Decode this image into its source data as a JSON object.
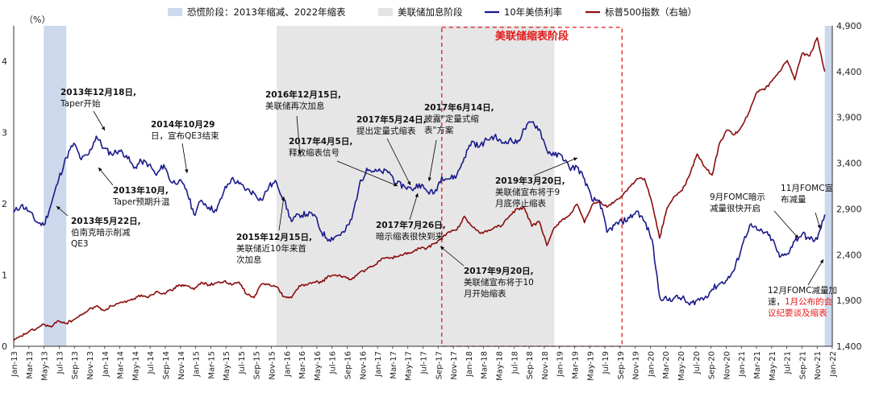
{
  "chart_data": {
    "type": "line",
    "title": "",
    "left_axis": {
      "unit_label": "（%）",
      "ylim": [
        0,
        4.5
      ],
      "ticks": [
        "0",
        "1",
        "2",
        "3",
        "4"
      ]
    },
    "right_axis": {
      "ylim": [
        1400,
        4900
      ],
      "ticks": [
        "1,400",
        "1,900",
        "2,400",
        "2,900",
        "3,400",
        "3,900",
        "4,400",
        "4,900"
      ]
    },
    "x_ticks": [
      "Jan-13",
      "Mar-13",
      "May-13",
      "Jul-13",
      "Sep-13",
      "Nov-13",
      "Jan-14",
      "Mar-14",
      "May-14",
      "Jul-14",
      "Sep-14",
      "Nov-14",
      "Jan-15",
      "Mar-15",
      "May-15",
      "Jul-15",
      "Sep-15",
      "Nov-15",
      "Jan-16",
      "Mar-16",
      "May-16",
      "Jul-16",
      "Sep-16",
      "Nov-16",
      "Jan-17",
      "Mar-17",
      "May-17",
      "Jul-17",
      "Sep-17",
      "Nov-17",
      "Jan-18",
      "Mar-18",
      "May-18",
      "Jul-18",
      "Sep-18",
      "Nov-18",
      "Jan-19",
      "Mar-19",
      "May-19",
      "Jul-19",
      "Sep-19",
      "Nov-19",
      "Jan-20",
      "Mar-20",
      "May-20",
      "Jul-20",
      "Sep-20",
      "Nov-20",
      "Jan-21",
      "Mar-21",
      "May-21",
      "Jul-21",
      "Sep-21",
      "Nov-21",
      "Jan-22"
    ],
    "legend": [
      {
        "name": "恐慌阶段：2013年缩减、2022年缩表",
        "kind": "box",
        "color": "#ccd9ec"
      },
      {
        "name": "美联储加息阶段",
        "kind": "box",
        "color": "#e3e3e3"
      },
      {
        "name": "10年美债利率",
        "kind": "line",
        "color": "#1a1a8c"
      },
      {
        "name": "标普500指数（右轴）",
        "kind": "line",
        "color": "#8b0d0d"
      }
    ],
    "shaded_periods": [
      {
        "type": "panic",
        "start": "2013-05",
        "end": "2013-07"
      },
      {
        "type": "panic",
        "start": "2022-01",
        "end": "2022-01"
      },
      {
        "type": "hike",
        "start": "2015-12",
        "end": "2018-12"
      }
    ],
    "qt_box_label": "美联储缩表阶段",
    "qt_period": {
      "start": "2017-10",
      "end": "2019-10"
    },
    "series": [
      {
        "name": "10年美债利率",
        "axis": "left",
        "color": "#1a1a8c",
        "points": [
          [
            "2013-01",
            1.88
          ],
          [
            "2013-02",
            1.98
          ],
          [
            "2013-03",
            1.9
          ],
          [
            "2013-04",
            1.75
          ],
          [
            "2013-05",
            1.7
          ],
          [
            "2013-06",
            2.0
          ],
          [
            "2013-07",
            2.35
          ],
          [
            "2013-08",
            2.65
          ],
          [
            "2013-09",
            2.85
          ],
          [
            "2013-10",
            2.62
          ],
          [
            "2013-11",
            2.7
          ],
          [
            "2013-12",
            2.95
          ],
          [
            "2014-01",
            2.78
          ],
          [
            "2014-02",
            2.7
          ],
          [
            "2014-03",
            2.75
          ],
          [
            "2014-04",
            2.68
          ],
          [
            "2014-05",
            2.5
          ],
          [
            "2014-06",
            2.6
          ],
          [
            "2014-07",
            2.55
          ],
          [
            "2014-08",
            2.4
          ],
          [
            "2014-09",
            2.55
          ],
          [
            "2014-10",
            2.3
          ],
          [
            "2014-11",
            2.32
          ],
          [
            "2014-12",
            2.2
          ],
          [
            "2015-01",
            1.85
          ],
          [
            "2015-02",
            2.05
          ],
          [
            "2015-03",
            1.95
          ],
          [
            "2015-04",
            1.9
          ],
          [
            "2015-05",
            2.18
          ],
          [
            "2015-06",
            2.35
          ],
          [
            "2015-07",
            2.28
          ],
          [
            "2015-08",
            2.2
          ],
          [
            "2015-09",
            2.15
          ],
          [
            "2015-10",
            2.05
          ],
          [
            "2015-11",
            2.25
          ],
          [
            "2015-12",
            2.3
          ],
          [
            "2016-01",
            2.05
          ],
          [
            "2016-02",
            1.75
          ],
          [
            "2016-03",
            1.85
          ],
          [
            "2016-04",
            1.85
          ],
          [
            "2016-05",
            1.85
          ],
          [
            "2016-06",
            1.6
          ],
          [
            "2016-07",
            1.5
          ],
          [
            "2016-08",
            1.55
          ],
          [
            "2016-09",
            1.6
          ],
          [
            "2016-10",
            1.78
          ],
          [
            "2016-11",
            2.25
          ],
          [
            "2016-12",
            2.5
          ],
          [
            "2017-01",
            2.45
          ],
          [
            "2017-02",
            2.45
          ],
          [
            "2017-03",
            2.45
          ],
          [
            "2017-04",
            2.28
          ],
          [
            "2017-05",
            2.25
          ],
          [
            "2017-06",
            2.2
          ],
          [
            "2017-07",
            2.28
          ],
          [
            "2017-08",
            2.18
          ],
          [
            "2017-09",
            2.15
          ],
          [
            "2017-10",
            2.38
          ],
          [
            "2017-11",
            2.35
          ],
          [
            "2017-12",
            2.4
          ],
          [
            "2018-01",
            2.65
          ],
          [
            "2018-02",
            2.88
          ],
          [
            "2018-03",
            2.8
          ],
          [
            "2018-04",
            2.9
          ],
          [
            "2018-05",
            2.95
          ],
          [
            "2018-06",
            2.85
          ],
          [
            "2018-07",
            2.9
          ],
          [
            "2018-08",
            2.85
          ],
          [
            "2018-09",
            3.05
          ],
          [
            "2018-10",
            3.15
          ],
          [
            "2018-11",
            3.05
          ],
          [
            "2018-12",
            2.75
          ],
          [
            "2019-01",
            2.68
          ],
          [
            "2019-02",
            2.68
          ],
          [
            "2019-03",
            2.5
          ],
          [
            "2019-04",
            2.52
          ],
          [
            "2019-05",
            2.35
          ],
          [
            "2019-06",
            2.05
          ],
          [
            "2019-07",
            2.05
          ],
          [
            "2019-08",
            1.6
          ],
          [
            "2019-09",
            1.7
          ],
          [
            "2019-10",
            1.75
          ],
          [
            "2019-11",
            1.8
          ],
          [
            "2019-12",
            1.9
          ],
          [
            "2020-01",
            1.75
          ],
          [
            "2020-02",
            1.5
          ],
          [
            "2020-03",
            0.7
          ],
          [
            "2020-04",
            0.65
          ],
          [
            "2020-05",
            0.68
          ],
          [
            "2020-06",
            0.68
          ],
          [
            "2020-07",
            0.58
          ],
          [
            "2020-08",
            0.65
          ],
          [
            "2020-09",
            0.68
          ],
          [
            "2020-10",
            0.8
          ],
          [
            "2020-11",
            0.88
          ],
          [
            "2020-12",
            0.93
          ],
          [
            "2021-01",
            1.08
          ],
          [
            "2021-02",
            1.42
          ],
          [
            "2021-03",
            1.7
          ],
          [
            "2021-04",
            1.63
          ],
          [
            "2021-05",
            1.6
          ],
          [
            "2021-06",
            1.5
          ],
          [
            "2021-07",
            1.25
          ],
          [
            "2021-08",
            1.3
          ],
          [
            "2021-09",
            1.48
          ],
          [
            "2021-10",
            1.58
          ],
          [
            "2021-11",
            1.5
          ],
          [
            "2021-12",
            1.5
          ],
          [
            "2022-01",
            1.85
          ]
        ]
      },
      {
        "name": "标普500指数（右轴）",
        "axis": "right",
        "color": "#8b0d0d",
        "points": [
          [
            "2013-01",
            1460
          ],
          [
            "2013-02",
            1510
          ],
          [
            "2013-03",
            1560
          ],
          [
            "2013-04",
            1590
          ],
          [
            "2013-05",
            1640
          ],
          [
            "2013-06",
            1610
          ],
          [
            "2013-07",
            1680
          ],
          [
            "2013-08",
            1650
          ],
          [
            "2013-09",
            1690
          ],
          [
            "2013-10",
            1740
          ],
          [
            "2013-11",
            1800
          ],
          [
            "2013-12",
            1840
          ],
          [
            "2014-01",
            1790
          ],
          [
            "2014-02",
            1840
          ],
          [
            "2014-03",
            1870
          ],
          [
            "2014-04",
            1880
          ],
          [
            "2014-05",
            1920
          ],
          [
            "2014-06",
            1960
          ],
          [
            "2014-07",
            1940
          ],
          [
            "2014-08",
            2000
          ],
          [
            "2014-09",
            1980
          ],
          [
            "2014-10",
            2010
          ],
          [
            "2014-11",
            2070
          ],
          [
            "2014-12",
            2060
          ],
          [
            "2015-01",
            2020
          ],
          [
            "2015-02",
            2100
          ],
          [
            "2015-03",
            2070
          ],
          [
            "2015-04",
            2090
          ],
          [
            "2015-05",
            2110
          ],
          [
            "2015-06",
            2070
          ],
          [
            "2015-07",
            2100
          ],
          [
            "2015-08",
            1970
          ],
          [
            "2015-09",
            1930
          ],
          [
            "2015-10",
            2080
          ],
          [
            "2015-11",
            2080
          ],
          [
            "2015-12",
            2050
          ],
          [
            "2016-01",
            1940
          ],
          [
            "2016-02",
            1930
          ],
          [
            "2016-03",
            2060
          ],
          [
            "2016-04",
            2070
          ],
          [
            "2016-05",
            2100
          ],
          [
            "2016-06",
            2100
          ],
          [
            "2016-07",
            2170
          ],
          [
            "2016-08",
            2170
          ],
          [
            "2016-09",
            2160
          ],
          [
            "2016-10",
            2130
          ],
          [
            "2016-11",
            2200
          ],
          [
            "2016-12",
            2240
          ],
          [
            "2017-01",
            2280
          ],
          [
            "2017-02",
            2360
          ],
          [
            "2017-03",
            2360
          ],
          [
            "2017-04",
            2380
          ],
          [
            "2017-05",
            2410
          ],
          [
            "2017-06",
            2420
          ],
          [
            "2017-07",
            2470
          ],
          [
            "2017-08",
            2470
          ],
          [
            "2017-09",
            2520
          ],
          [
            "2017-10",
            2580
          ],
          [
            "2017-11",
            2650
          ],
          [
            "2017-12",
            2670
          ],
          [
            "2018-01",
            2820
          ],
          [
            "2018-02",
            2710
          ],
          [
            "2018-03",
            2640
          ],
          [
            "2018-04",
            2650
          ],
          [
            "2018-05",
            2700
          ],
          [
            "2018-06",
            2720
          ],
          [
            "2018-07",
            2820
          ],
          [
            "2018-08",
            2900
          ],
          [
            "2018-09",
            2910
          ],
          [
            "2018-10",
            2710
          ],
          [
            "2018-11",
            2760
          ],
          [
            "2018-12",
            2500
          ],
          [
            "2019-01",
            2700
          ],
          [
            "2019-02",
            2780
          ],
          [
            "2019-03",
            2830
          ],
          [
            "2019-04",
            2950
          ],
          [
            "2019-05",
            2750
          ],
          [
            "2019-06",
            2940
          ],
          [
            "2019-07",
            2980
          ],
          [
            "2019-08",
            2920
          ],
          [
            "2019-09",
            2980
          ],
          [
            "2019-10",
            3040
          ],
          [
            "2019-11",
            3140
          ],
          [
            "2019-12",
            3230
          ],
          [
            "2020-01",
            3230
          ],
          [
            "2020-02",
            2960
          ],
          [
            "2020-03",
            2580
          ],
          [
            "2020-04",
            2910
          ],
          [
            "2020-05",
            3040
          ],
          [
            "2020-06",
            3100
          ],
          [
            "2020-07",
            3270
          ],
          [
            "2020-08",
            3500
          ],
          [
            "2020-09",
            3360
          ],
          [
            "2020-10",
            3270
          ],
          [
            "2020-11",
            3620
          ],
          [
            "2020-12",
            3760
          ],
          [
            "2021-01",
            3710
          ],
          [
            "2021-02",
            3810
          ],
          [
            "2021-03",
            3970
          ],
          [
            "2021-04",
            4180
          ],
          [
            "2021-05",
            4200
          ],
          [
            "2021-06",
            4300
          ],
          [
            "2021-07",
            4400
          ],
          [
            "2021-08",
            4520
          ],
          [
            "2021-09",
            4310
          ],
          [
            "2021-10",
            4600
          ],
          [
            "2021-11",
            4570
          ],
          [
            "2021-12",
            4770
          ],
          [
            "2022-01",
            4400
          ]
        ]
      }
    ],
    "annotations": [
      {
        "id": "a1",
        "lines": [
          "2013年12月18日,",
          "Taper开始"
        ],
        "color": "#111111",
        "bold_first": true
      },
      {
        "id": "a2",
        "lines": [
          "2013年10月,",
          "Taper预期升温"
        ],
        "color": "#111111",
        "bold_first": true
      },
      {
        "id": "a3",
        "lines": [
          "2013年5月22日,",
          "伯南克暗示削减",
          "QE3"
        ],
        "color": "#e41a1a",
        "bold_first": true
      },
      {
        "id": "a4",
        "lines": [
          "2014年10月29",
          "日，宣布QE3结束"
        ],
        "color": "#111111",
        "bold_first": true
      },
      {
        "id": "a5",
        "lines": [
          "2015年12月15日,",
          "美联储近10年来首",
          "次加息"
        ],
        "color": "#111111",
        "bold_first": true
      },
      {
        "id": "a6",
        "lines": [
          "2016年12月15日,",
          "美联储再次加息"
        ],
        "color": "#111111",
        "bold_first": true
      },
      {
        "id": "a7",
        "lines": [
          "2017年4月5日,",
          "释放缩表信号"
        ],
        "color": "#e41a1a",
        "bold_first": true
      },
      {
        "id": "a8",
        "lines": [
          "2017年5月24日,",
          "提出定量式缩表"
        ],
        "color": "#111111",
        "bold_first": true
      },
      {
        "id": "a9",
        "lines": [
          "2017年6月14日,",
          "披露\"定量式缩",
          "表\"方案"
        ],
        "color": "#111111",
        "bold_first": true
      },
      {
        "id": "a10",
        "lines": [
          "2017年7月26日,",
          "暗示缩表很快到来"
        ],
        "color": "#111111",
        "bold_first": true
      },
      {
        "id": "a11",
        "lines": [
          "2017年9月20日,",
          "美联储宣布将于10",
          "月开始缩表"
        ],
        "color": "#111111",
        "bold_first": true
      },
      {
        "id": "a12",
        "lines": [
          "2019年3月20日,",
          "美联储宣布将于9",
          "月底停止缩表"
        ],
        "color": "#111111",
        "bold_first": true
      },
      {
        "id": "a13",
        "lines": [
          "9月FOMC暗示",
          "减量很快开启"
        ],
        "color": "#111111",
        "bold_first": false
      },
      {
        "id": "a14",
        "lines": [
          "11月FOMC宣",
          "布减量"
        ],
        "color": "#111111",
        "bold_first": false
      },
      {
        "id": "a15",
        "lines": [
          "12月FOMC减量加",
          "速，1月公布的会",
          "议纪要谈及缩表"
        ],
        "color": "#111111",
        "bold_first": false,
        "red_from_line": 1,
        "red_from_char": 2
      }
    ]
  }
}
